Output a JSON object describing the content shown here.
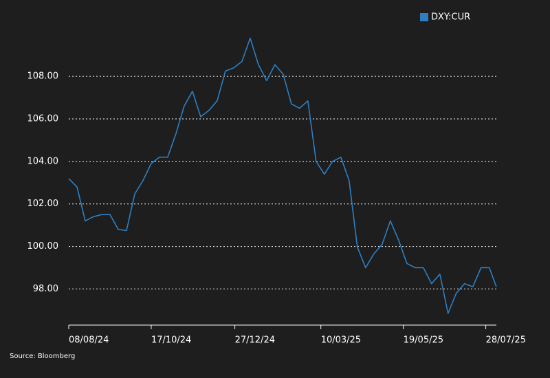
{
  "chart_data": {
    "type": "line",
    "source": "Source: Bloomberg",
    "x": [
      "08/08/24",
      "15/08/24",
      "22/08/24",
      "29/08/24",
      "05/09/24",
      "12/09/24",
      "19/09/24",
      "26/09/24",
      "03/10/24",
      "10/10/24",
      "17/10/24",
      "24/10/24",
      "31/10/24",
      "07/11/24",
      "14/11/24",
      "21/11/24",
      "28/11/24",
      "05/12/24",
      "12/12/24",
      "19/12/24",
      "26/12/24",
      "02/01/25",
      "09/01/25",
      "16/01/25",
      "23/01/25",
      "30/01/25",
      "06/02/25",
      "13/02/25",
      "20/02/25",
      "27/02/25",
      "06/03/25",
      "13/03/25",
      "20/03/25",
      "27/03/25",
      "03/04/25",
      "10/04/25",
      "17/04/25",
      "24/04/25",
      "01/05/25",
      "08/05/25",
      "15/05/25",
      "22/05/25",
      "29/05/25",
      "05/06/25",
      "12/06/25",
      "19/06/25",
      "26/06/25",
      "03/07/25",
      "10/07/25",
      "17/07/25",
      "24/07/25",
      "31/07/25",
      "06/08/25"
    ],
    "series": [
      {
        "name": "DXY:CUR",
        "color": "#2e7fc2",
        "values": [
          103.19,
          102.8,
          101.2,
          101.4,
          101.5,
          101.5,
          100.8,
          100.75,
          102.47,
          103.1,
          103.9,
          104.2,
          104.2,
          105.3,
          106.6,
          107.3,
          106.1,
          106.4,
          106.85,
          108.25,
          108.4,
          108.7,
          109.8,
          108.55,
          107.8,
          108.55,
          108.1,
          106.7,
          106.5,
          106.85,
          104.0,
          103.4,
          104.0,
          104.2,
          103.1,
          99.97,
          99.0,
          99.65,
          100.1,
          101.2,
          100.3,
          99.2,
          99.0,
          99.0,
          98.25,
          98.7,
          96.85,
          97.8,
          98.25,
          98.1,
          99.0,
          99.0,
          98.1
        ]
      }
    ],
    "xlim": [
      "08/08/24",
      "06/08/25"
    ],
    "xticks": [
      "08/08/24",
      "17/10/24",
      "27/12/24",
      "10/03/25",
      "19/05/25",
      "28/07/25"
    ],
    "ylim": [
      96.3,
      110.3
    ],
    "yticks": [
      {
        "value": 98,
        "label": "98.00"
      },
      {
        "value": 100,
        "label": "100.00"
      },
      {
        "value": 102,
        "label": "102.00"
      },
      {
        "value": 104,
        "label": "104.00"
      },
      {
        "value": 106,
        "label": "106.00"
      },
      {
        "value": 108,
        "label": "108.00"
      }
    ],
    "grid": true,
    "legend": "top-right"
  }
}
